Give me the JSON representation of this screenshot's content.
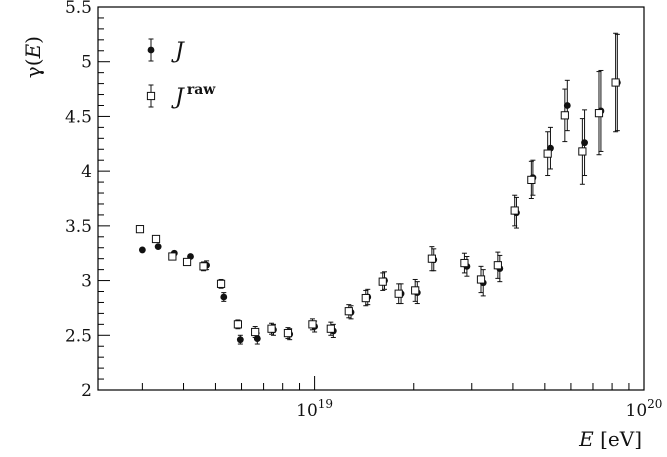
{
  "chart_data": {
    "type": "scatter",
    "title": "",
    "xlabel": "E [eV]",
    "xlabel_parts": {
      "var": "E",
      "unit": " [eV]"
    },
    "ylabel": "γ(E)",
    "ylabel_parts": {
      "func": "γ(",
      "var": "E",
      "close": ")"
    },
    "x_scale": "log",
    "xlim": [
      2.2e+18,
      1e+20
    ],
    "ylim": [
      2,
      5.5
    ],
    "x_ticks": [
      {
        "value": 1e+19,
        "base": "10",
        "exp": "19"
      },
      {
        "value": 1e+20,
        "base": "10",
        "exp": "20"
      }
    ],
    "y_ticks": [
      "2",
      "2.5",
      "3",
      "3.5",
      "4",
      "4.5",
      "5",
      "5.5"
    ],
    "grid": false,
    "legend_position": "top-left",
    "legend": [
      {
        "name": "J",
        "sup": "",
        "marker": "filled-circle"
      },
      {
        "name": "J",
        "sup": "raw",
        "marker": "open-square"
      }
    ],
    "series": [
      {
        "name": "J",
        "marker": "filled-circle",
        "points": [
          {
            "x": 3e+18,
            "y": 3.28,
            "err": 0.0
          },
          {
            "x": 3.35e+18,
            "y": 3.31,
            "err": 0.0
          },
          {
            "x": 3.75e+18,
            "y": 3.25,
            "err": 0.0
          },
          {
            "x": 4.2e+18,
            "y": 3.22,
            "err": 0.0
          },
          {
            "x": 4.7e+18,
            "y": 3.14,
            "err": 0.04
          },
          {
            "x": 5.3e+18,
            "y": 2.85,
            "err": 0.04
          },
          {
            "x": 5.95e+18,
            "y": 2.46,
            "err": 0.04
          },
          {
            "x": 6.7e+18,
            "y": 2.47,
            "err": 0.05
          },
          {
            "x": 7.5e+18,
            "y": 2.55,
            "err": 0.05
          },
          {
            "x": 8.4e+18,
            "y": 2.51,
            "err": 0.05
          },
          {
            "x": 1e+19,
            "y": 2.58,
            "err": 0.05
          },
          {
            "x": 1.14e+19,
            "y": 2.54,
            "err": 0.06
          },
          {
            "x": 1.29e+19,
            "y": 2.71,
            "err": 0.06
          },
          {
            "x": 1.45e+19,
            "y": 2.85,
            "err": 0.07
          },
          {
            "x": 1.63e+19,
            "y": 3.0,
            "err": 0.08
          },
          {
            "x": 1.83e+19,
            "y": 2.88,
            "err": 0.09
          },
          {
            "x": 2.05e+19,
            "y": 2.89,
            "err": 0.1
          },
          {
            "x": 2.3e+19,
            "y": 3.19,
            "err": 0.1
          },
          {
            "x": 2.9e+19,
            "y": 3.13,
            "err": 0.09
          },
          {
            "x": 3.25e+19,
            "y": 2.98,
            "err": 0.12
          },
          {
            "x": 3.65e+19,
            "y": 3.11,
            "err": 0.12
          },
          {
            "x": 4.1e+19,
            "y": 3.62,
            "err": 0.14
          },
          {
            "x": 4.6e+19,
            "y": 3.94,
            "err": 0.16
          },
          {
            "x": 5.2e+19,
            "y": 4.21,
            "err": 0.19
          },
          {
            "x": 5.85e+19,
            "y": 4.6,
            "err": 0.23
          },
          {
            "x": 6.6e+19,
            "y": 4.26,
            "err": 0.3
          },
          {
            "x": 7.4e+19,
            "y": 4.55,
            "err": 0.37
          },
          {
            "x": 8.3e+19,
            "y": 4.81,
            "err": 0.44
          }
        ]
      },
      {
        "name": "Jraw",
        "marker": "open-square",
        "points": [
          {
            "x": 2.95e+18,
            "y": 3.47,
            "err": 0.0
          },
          {
            "x": 3.3e+18,
            "y": 3.38,
            "err": 0.0
          },
          {
            "x": 3.7e+18,
            "y": 3.22,
            "err": 0.0
          },
          {
            "x": 4.1e+18,
            "y": 3.17,
            "err": 0.0
          },
          {
            "x": 4.6e+18,
            "y": 3.13,
            "err": 0.04
          },
          {
            "x": 5.2e+18,
            "y": 2.97,
            "err": 0.04
          },
          {
            "x": 5.85e+18,
            "y": 2.6,
            "err": 0.04
          },
          {
            "x": 6.6e+18,
            "y": 2.53,
            "err": 0.05
          },
          {
            "x": 7.4e+18,
            "y": 2.56,
            "err": 0.05
          },
          {
            "x": 8.3e+18,
            "y": 2.52,
            "err": 0.05
          },
          {
            "x": 9.85e+18,
            "y": 2.6,
            "err": 0.05
          },
          {
            "x": 1.12e+19,
            "y": 2.56,
            "err": 0.06
          },
          {
            "x": 1.27e+19,
            "y": 2.72,
            "err": 0.06
          },
          {
            "x": 1.43e+19,
            "y": 2.84,
            "err": 0.07
          },
          {
            "x": 1.61e+19,
            "y": 2.99,
            "err": 0.08
          },
          {
            "x": 1.8e+19,
            "y": 2.88,
            "err": 0.09
          },
          {
            "x": 2.02e+19,
            "y": 2.91,
            "err": 0.1
          },
          {
            "x": 2.27e+19,
            "y": 3.2,
            "err": 0.11
          },
          {
            "x": 2.85e+19,
            "y": 3.16,
            "err": 0.09
          },
          {
            "x": 3.2e+19,
            "y": 3.01,
            "err": 0.12
          },
          {
            "x": 3.6e+19,
            "y": 3.14,
            "err": 0.12
          },
          {
            "x": 4.05e+19,
            "y": 3.64,
            "err": 0.14
          },
          {
            "x": 4.55e+19,
            "y": 3.92,
            "err": 0.17
          },
          {
            "x": 5.1e+19,
            "y": 4.16,
            "err": 0.2
          },
          {
            "x": 5.75e+19,
            "y": 4.51,
            "err": 0.24
          },
          {
            "x": 6.5e+19,
            "y": 4.18,
            "err": 0.3
          },
          {
            "x": 7.3e+19,
            "y": 4.53,
            "err": 0.38
          },
          {
            "x": 8.2e+19,
            "y": 4.81,
            "err": 0.45
          }
        ]
      }
    ]
  }
}
